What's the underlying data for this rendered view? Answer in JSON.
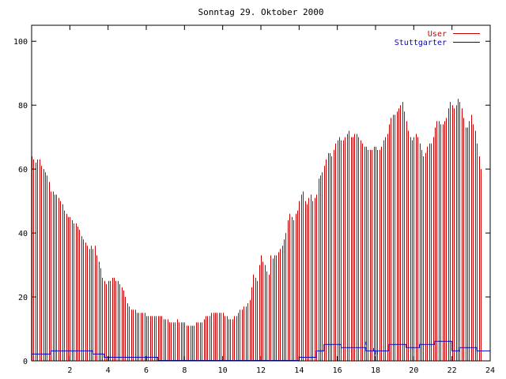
{
  "chart_data": {
    "type": "bar",
    "title": "Sonntag 29. Oktober 2000",
    "xlabel": "",
    "ylabel": "",
    "xlim": [
      0,
      24
    ],
    "ylim": [
      0,
      105
    ],
    "x_ticks": [
      2,
      4,
      6,
      8,
      10,
      12,
      14,
      16,
      18,
      20,
      22,
      24
    ],
    "y_ticks": [
      0,
      20,
      40,
      60,
      80,
      100
    ],
    "grid": false,
    "legend_position": "top-right",
    "series": [
      {
        "name": "User",
        "color": "#cc0000",
        "style": "impulses",
        "x_step_hours": 0.1,
        "values": [
          64,
          63,
          62,
          63,
          63,
          61,
          60,
          59,
          58,
          56,
          53,
          53,
          52,
          52,
          51,
          50,
          49,
          47,
          46,
          45,
          45,
          44,
          43,
          43,
          42,
          41,
          39,
          38,
          37,
          36,
          35,
          36,
          35,
          36,
          33,
          31,
          29,
          26,
          25,
          24,
          25,
          25,
          26,
          26,
          25,
          25,
          24,
          23,
          22,
          20,
          18,
          17,
          16,
          16,
          16,
          15,
          15,
          15,
          15,
          15,
          14,
          14,
          14,
          14,
          14,
          14,
          14,
          14,
          14,
          13,
          13,
          13,
          12,
          12,
          12,
          12,
          13,
          12,
          12,
          12,
          12,
          11,
          11,
          11,
          11,
          11,
          12,
          12,
          12,
          12,
          13,
          14,
          14,
          14,
          15,
          15,
          15,
          15,
          15,
          15,
          15,
          14,
          14,
          13,
          13,
          13,
          14,
          14,
          15,
          16,
          16,
          17,
          17,
          18,
          19,
          23,
          27,
          26,
          25,
          30,
          33,
          31,
          30,
          28,
          27,
          33,
          32,
          33,
          33,
          34,
          35,
          36,
          38,
          40,
          44,
          46,
          45,
          44,
          46,
          47,
          50,
          52,
          53,
          50,
          49,
          51,
          52,
          50,
          51,
          52,
          57,
          58,
          59,
          61,
          63,
          65,
          65,
          64,
          66,
          68,
          69,
          70,
          69,
          69,
          70,
          71,
          72,
          70,
          70,
          71,
          71,
          70,
          69,
          68,
          67,
          67,
          66,
          66,
          66,
          67,
          67,
          66,
          66,
          67,
          69,
          70,
          71,
          74,
          76,
          77,
          77,
          78,
          79,
          80,
          81,
          78,
          75,
          72,
          70,
          69,
          70,
          71,
          70,
          68,
          66,
          64,
          65,
          67,
          68,
          68,
          70,
          73,
          75,
          75,
          74,
          74,
          75,
          76,
          79,
          81,
          80,
          79,
          80,
          82,
          81,
          79,
          76,
          73,
          73,
          75,
          77,
          74,
          72,
          68,
          64,
          60
        ]
      },
      {
        "name": "Stuttgarter",
        "color": "#0000cc",
        "style": "steps",
        "points": [
          [
            0,
            2
          ],
          [
            1,
            2
          ],
          [
            1,
            3
          ],
          [
            3.2,
            3
          ],
          [
            3.2,
            2
          ],
          [
            3.8,
            2
          ],
          [
            3.8,
            1
          ],
          [
            6.6,
            1
          ],
          [
            6.6,
            0
          ],
          [
            14,
            0
          ],
          [
            14,
            1
          ],
          [
            14.9,
            1
          ],
          [
            14.9,
            3
          ],
          [
            15.3,
            3
          ],
          [
            15.3,
            5
          ],
          [
            16.2,
            5
          ],
          [
            16.2,
            4
          ],
          [
            17.5,
            4
          ],
          [
            17.5,
            3
          ],
          [
            18.7,
            3
          ],
          [
            18.7,
            5
          ],
          [
            19.6,
            5
          ],
          [
            19.6,
            4
          ],
          [
            20.3,
            4
          ],
          [
            20.3,
            5
          ],
          [
            21.1,
            5
          ],
          [
            21.1,
            6
          ],
          [
            22,
            6
          ],
          [
            22,
            3
          ],
          [
            22.4,
            3
          ],
          [
            22.4,
            4
          ],
          [
            23.3,
            4
          ],
          [
            23.3,
            3
          ],
          [
            24,
            3
          ]
        ],
        "extra_marks": [
          [
            17.9,
            3
          ],
          [
            18.0,
            2
          ],
          [
            18.1,
            2
          ],
          [
            17.5,
            5
          ]
        ]
      }
    ]
  }
}
